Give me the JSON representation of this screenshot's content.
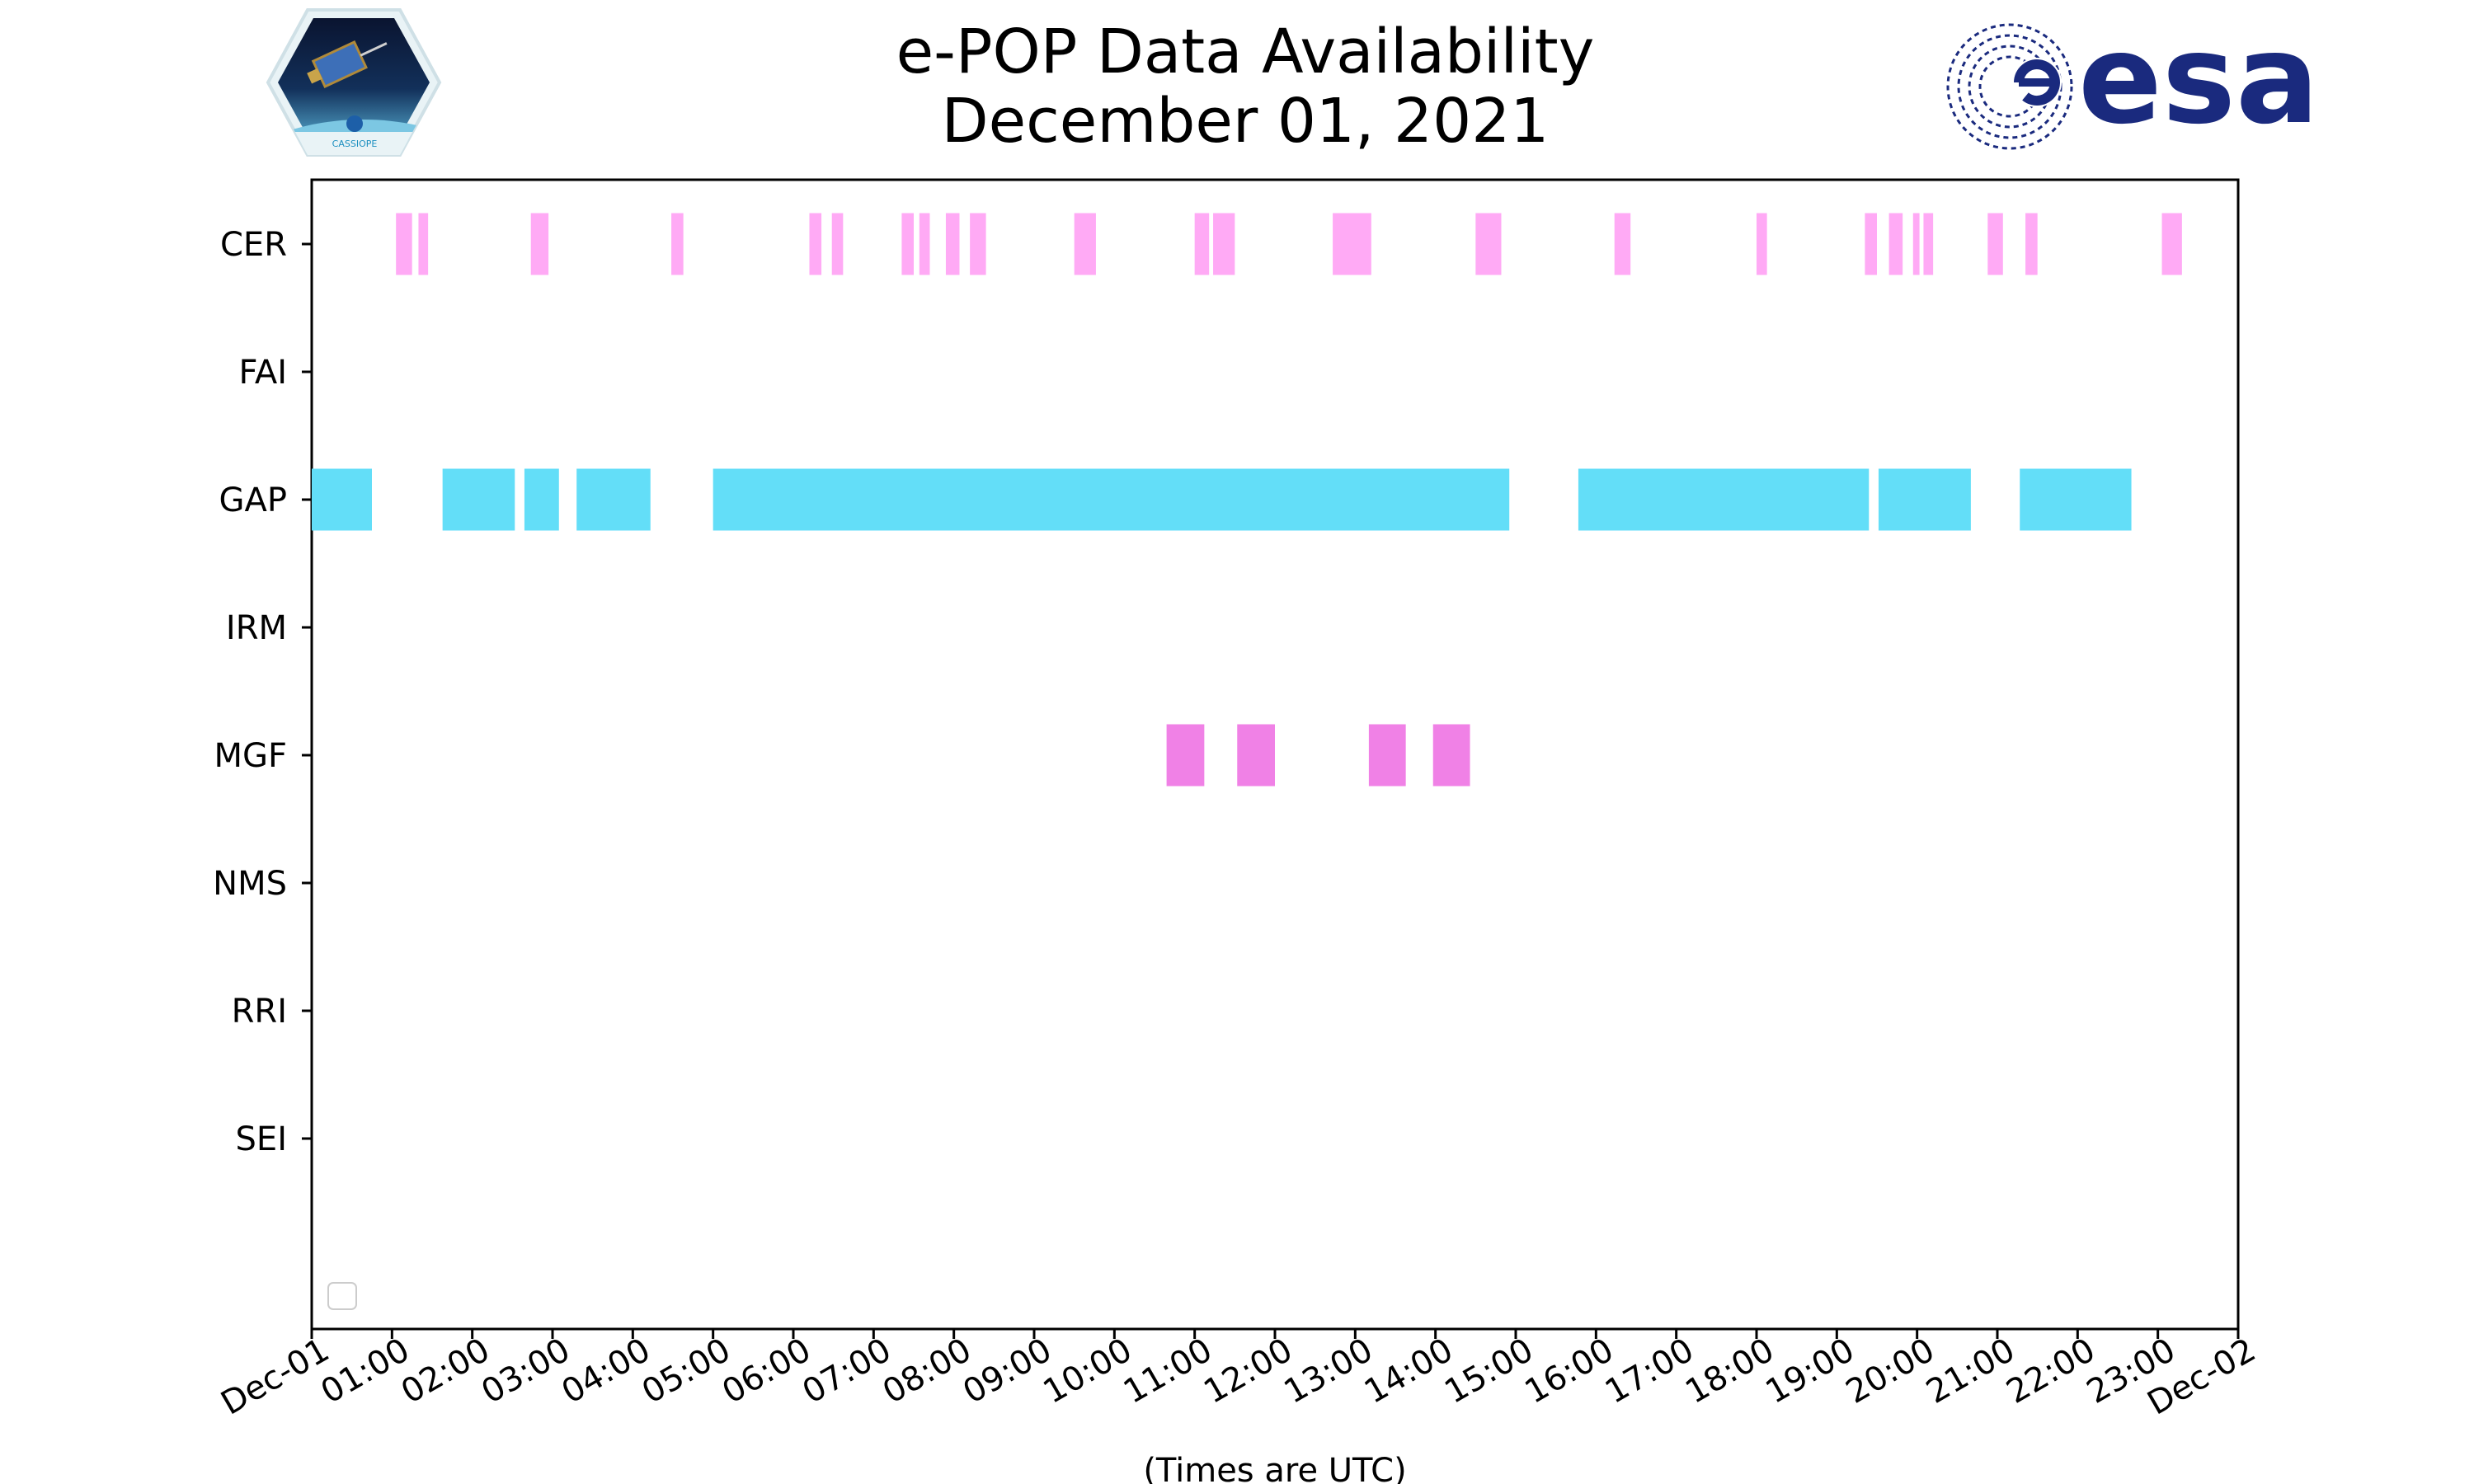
{
  "chart_data": {
    "type": "timeline",
    "title": "e-POP Data Availability",
    "subtitle": "December 01, 2021",
    "xlabel": "(Times are UTC)",
    "x_unit": "hours UTC",
    "xlim": [
      0,
      24
    ],
    "xtick_labels": [
      "Dec-01",
      "01:00",
      "02:00",
      "03:00",
      "04:00",
      "05:00",
      "06:00",
      "07:00",
      "08:00",
      "09:00",
      "10:00",
      "11:00",
      "12:00",
      "13:00",
      "14:00",
      "15:00",
      "16:00",
      "17:00",
      "18:00",
      "19:00",
      "20:00",
      "21:00",
      "22:00",
      "23:00",
      "Dec-02"
    ],
    "grid": false,
    "legend": "lower-left, empty",
    "categories": [
      "CER",
      "FAI",
      "GAP",
      "IRM",
      "MGF",
      "NMS",
      "RRI",
      "SEI"
    ],
    "series": [
      {
        "name": "CER",
        "color": "#FFAAF5",
        "intervals": [
          [
            1.05,
            1.25
          ],
          [
            1.33,
            1.45
          ],
          [
            2.73,
            2.95
          ],
          [
            4.48,
            4.63
          ],
          [
            6.2,
            6.35
          ],
          [
            6.48,
            6.62
          ],
          [
            7.35,
            7.5
          ],
          [
            7.57,
            7.7
          ],
          [
            7.9,
            8.07
          ],
          [
            8.2,
            8.4
          ],
          [
            9.5,
            9.77
          ],
          [
            11.0,
            11.18
          ],
          [
            11.23,
            11.5
          ],
          [
            12.72,
            13.2
          ],
          [
            14.5,
            14.82
          ],
          [
            16.23,
            16.43
          ],
          [
            18.0,
            18.13
          ],
          [
            19.35,
            19.5
          ],
          [
            19.65,
            19.82
          ],
          [
            19.95,
            20.03
          ],
          [
            20.08,
            20.2
          ],
          [
            20.88,
            21.07
          ],
          [
            21.35,
            21.5
          ],
          [
            23.05,
            23.3
          ]
        ]
      },
      {
        "name": "FAI",
        "color": "#E070E0",
        "intervals": []
      },
      {
        "name": "GAP",
        "color": "#63DEF8",
        "intervals": [
          [
            0.0,
            0.75
          ],
          [
            1.63,
            2.53
          ],
          [
            2.65,
            3.08
          ],
          [
            3.3,
            4.22
          ],
          [
            5.0,
            14.92
          ],
          [
            15.78,
            19.4
          ],
          [
            19.52,
            20.67
          ],
          [
            21.28,
            22.67
          ]
        ]
      },
      {
        "name": "IRM",
        "color": "#E070E0",
        "intervals": []
      },
      {
        "name": "MGF",
        "color": "#F081E6",
        "intervals": [
          [
            10.65,
            11.12
          ],
          [
            11.53,
            12.0
          ],
          [
            13.17,
            13.63
          ],
          [
            13.97,
            14.43
          ]
        ]
      },
      {
        "name": "NMS",
        "color": "#E070E0",
        "intervals": []
      },
      {
        "name": "RRI",
        "color": "#E070E0",
        "intervals": []
      },
      {
        "name": "SEI",
        "color": "#E070E0",
        "intervals": []
      }
    ]
  },
  "logos": {
    "left": "CASSIOPE",
    "right": "esa"
  },
  "colors": {
    "esa_blue": "#1A2A7E",
    "axis": "#000000"
  }
}
